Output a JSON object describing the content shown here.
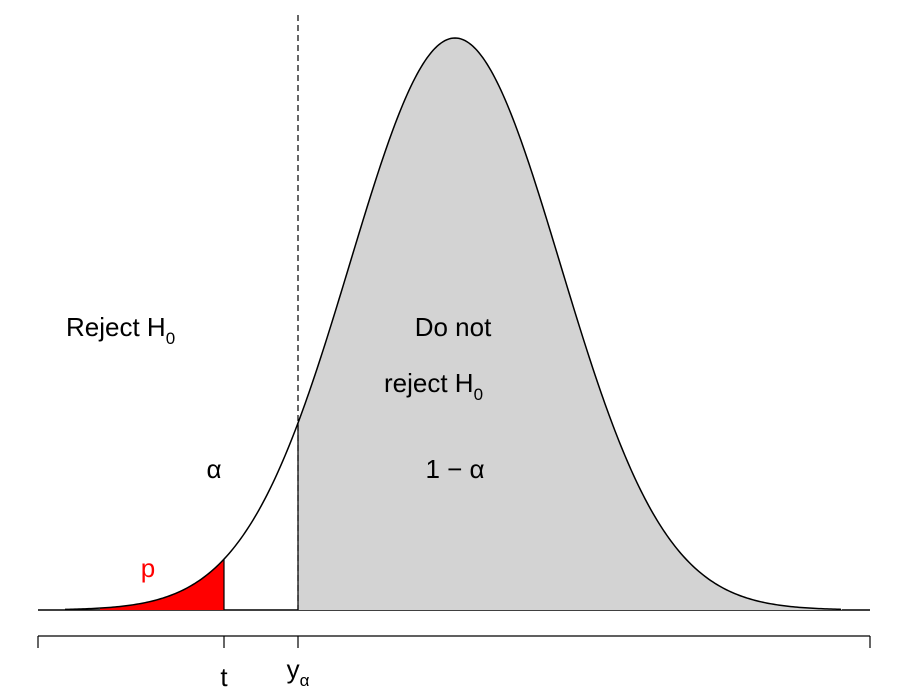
{
  "diagram": {
    "regions": {
      "reject": {
        "label": "Reject H",
        "label_subscript": "0",
        "area_label": "α"
      },
      "do_not_reject": {
        "label_line1": "Do not",
        "label_line2": "reject H",
        "label_subscript": "0",
        "area_label": "1 − α",
        "fill": "#d3d3d3"
      },
      "p_value": {
        "area_label": "p",
        "fill": "#ff0000"
      }
    },
    "axis": {
      "tick_t": "t",
      "tick_y_main": "y",
      "tick_y_subscript": "α"
    }
  }
}
